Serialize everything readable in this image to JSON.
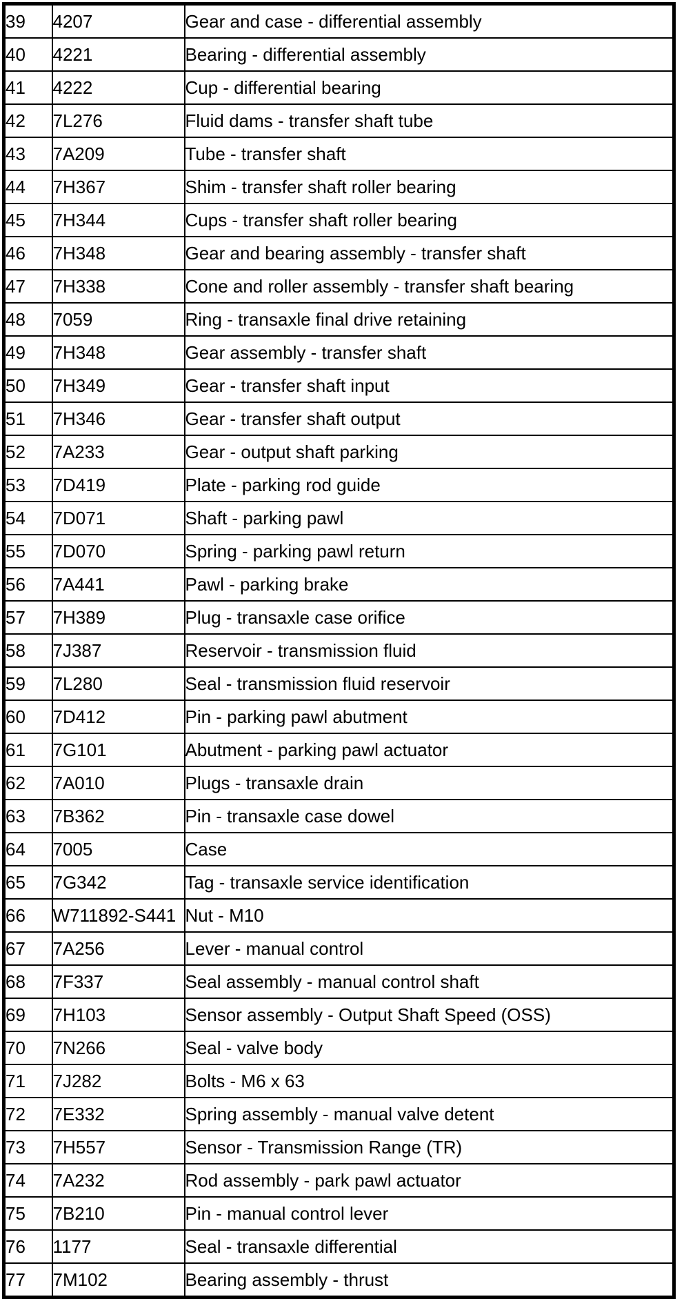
{
  "colors": {
    "background": "#ffffff",
    "border": "#000000",
    "text": "#000000"
  },
  "table": {
    "rows": [
      [
        "39",
        "4207",
        "Gear and case - differential assembly"
      ],
      [
        "40",
        "4221",
        "Bearing - differential assembly"
      ],
      [
        "41",
        "4222",
        "Cup - differential bearing"
      ],
      [
        "42",
        "7L276",
        "Fluid dams - transfer shaft tube"
      ],
      [
        "43",
        "7A209",
        "Tube - transfer shaft"
      ],
      [
        "44",
        "7H367",
        "Shim - transfer shaft roller bearing"
      ],
      [
        "45",
        "7H344",
        "Cups - transfer shaft roller bearing"
      ],
      [
        "46",
        "7H348",
        "Gear and bearing assembly - transfer shaft"
      ],
      [
        "47",
        "7H338",
        "Cone and roller assembly - transfer shaft bearing"
      ],
      [
        "48",
        "7059",
        "Ring - transaxle final drive retaining"
      ],
      [
        "49",
        "7H348",
        "Gear assembly - transfer shaft"
      ],
      [
        "50",
        "7H349",
        "Gear - transfer shaft input"
      ],
      [
        "51",
        "7H346",
        "Gear - transfer shaft output"
      ],
      [
        "52",
        "7A233",
        "Gear - output shaft parking"
      ],
      [
        "53",
        "7D419",
        "Plate - parking rod guide"
      ],
      [
        "54",
        "7D071",
        "Shaft - parking pawl"
      ],
      [
        "55",
        "7D070",
        "Spring - parking pawl return"
      ],
      [
        "56",
        "7A441",
        "Pawl - parking brake"
      ],
      [
        "57",
        "7H389",
        "Plug - transaxle case orifice"
      ],
      [
        "58",
        "7J387",
        "Reservoir - transmission fluid"
      ],
      [
        "59",
        "7L280",
        "Seal - transmission fluid reservoir"
      ],
      [
        "60",
        "7D412",
        "Pin - parking pawl abutment"
      ],
      [
        "61",
        "7G101",
        "Abutment - parking pawl actuator"
      ],
      [
        "62",
        "7A010",
        "Plugs - transaxle drain"
      ],
      [
        "63",
        "7B362",
        "Pin - transaxle case dowel"
      ],
      [
        "64",
        "7005",
        "Case"
      ],
      [
        "65",
        "7G342",
        "Tag - transaxle service identification"
      ],
      [
        "66",
        "W711892-S441",
        "Nut - M10"
      ],
      [
        "67",
        "7A256",
        "Lever - manual control"
      ],
      [
        "68",
        "7F337",
        "Seal assembly - manual control shaft"
      ],
      [
        "69",
        "7H103",
        "Sensor assembly - Output Shaft Speed (OSS)"
      ],
      [
        "70",
        "7N266",
        "Seal - valve body"
      ],
      [
        "71",
        "7J282",
        "Bolts - M6 x 63"
      ],
      [
        "72",
        "7E332",
        "Spring assembly - manual valve detent"
      ],
      [
        "73",
        "7H557",
        "Sensor - Transmission Range (TR)"
      ],
      [
        "74",
        "7A232",
        "Rod assembly - park pawl actuator"
      ],
      [
        "75",
        "7B210",
        "Pin - manual control lever"
      ],
      [
        "76",
        "1177",
        "Seal - transaxle differential"
      ],
      [
        "77",
        "7M102",
        "Bearing assembly - thrust"
      ]
    ]
  }
}
